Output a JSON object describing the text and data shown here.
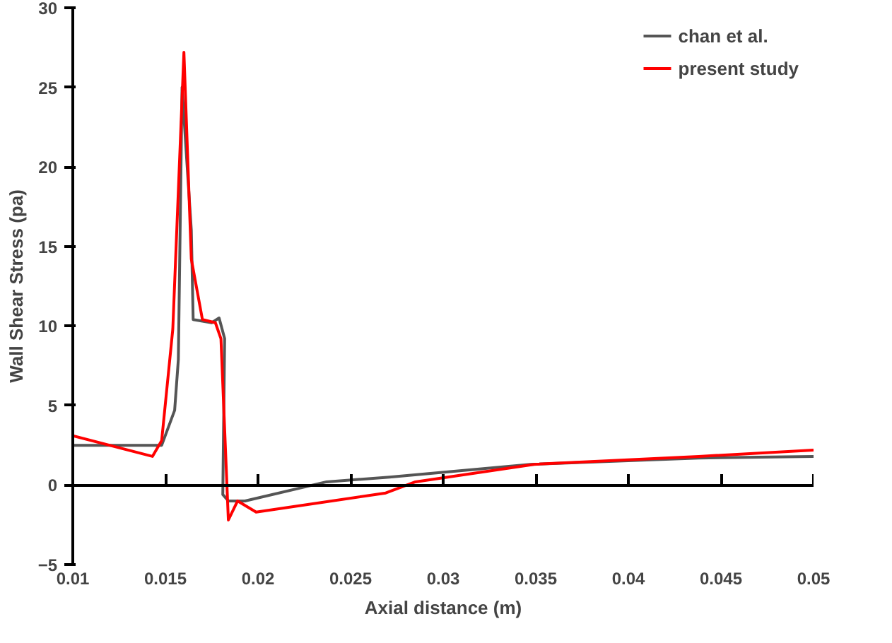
{
  "chart_data": {
    "type": "line",
    "xlabel": "Axial distance (m)",
    "ylabel": "Wall Shear Stress (pa)",
    "xlim": [
      0.01,
      0.05
    ],
    "ylim": [
      -5,
      30
    ],
    "xticks": [
      0.01,
      0.015,
      0.02,
      0.025,
      0.03,
      0.035,
      0.04,
      0.045,
      0.05
    ],
    "yticks": [
      -5,
      0,
      5,
      10,
      15,
      20,
      25,
      30
    ],
    "legend": "top right",
    "marker": "none",
    "line_style": "solid",
    "series": [
      {
        "name": "chan et al.",
        "color": "#555555",
        "x": [
          0.01,
          0.0148,
          0.0155,
          0.0157,
          0.0159,
          0.0164,
          0.0165,
          0.0175,
          0.0179,
          0.0182,
          0.0181,
          0.0184,
          0.0193,
          0.0237,
          0.0271,
          0.0347,
          0.0438,
          0.05
        ],
        "values": [
          2.5,
          2.5,
          4.7,
          7.9,
          25,
          16,
          10.4,
          10.2,
          10.5,
          9.2,
          -0.6,
          -1.0,
          -1.0,
          0.2,
          0.5,
          1.3,
          1.7,
          1.8
        ]
      },
      {
        "name": "present study",
        "color": "#ff0000",
        "x": [
          0.01,
          0.0143,
          0.0148,
          0.0154,
          0.016,
          0.0164,
          0.017,
          0.0177,
          0.018,
          0.0184,
          0.0189,
          0.0199,
          0.0269,
          0.0285,
          0.0349,
          0.0438,
          0.05
        ],
        "values": [
          3.1,
          1.8,
          2.8,
          9.8,
          27.2,
          14.2,
          10.4,
          10.2,
          9.2,
          -2.2,
          -1.0,
          -1.7,
          -0.5,
          0.2,
          1.3,
          1.8,
          2.2
        ]
      }
    ]
  }
}
